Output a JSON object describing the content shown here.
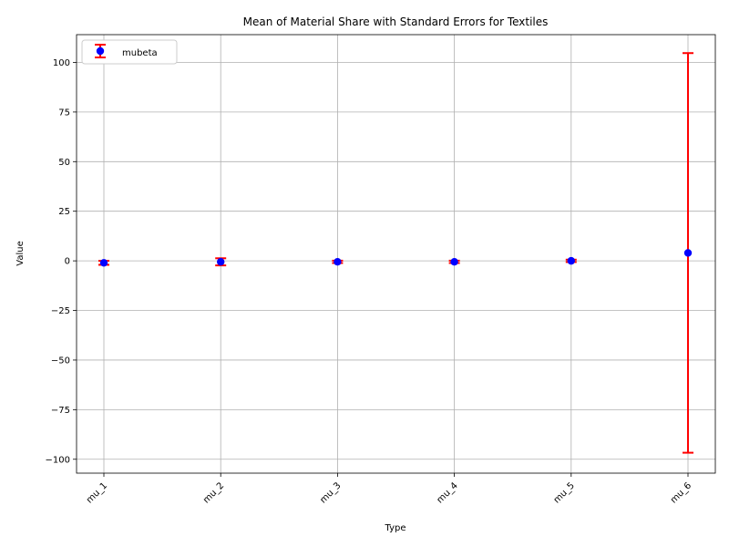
{
  "chart_data": {
    "type": "scatter",
    "title": "Mean of Material Share with Standard Errors for Textiles",
    "xlabel": "Type",
    "ylabel": "Value",
    "categories": [
      "mu_1",
      "mu_2",
      "mu_3",
      "mu_4",
      "mu_5",
      "mu_6"
    ],
    "series": [
      {
        "name": "mubeta",
        "values": [
          -1.0,
          -0.5,
          -0.5,
          -0.5,
          0.0,
          4.0
        ],
        "errors": [
          1.0,
          1.8,
          0.6,
          0.6,
          0.6,
          100.7
        ],
        "marker_color": "#0000ff",
        "error_color": "#ff0000"
      }
    ],
    "ylim": [
      -107,
      114
    ],
    "yticks": [
      -100,
      -75,
      -50,
      -25,
      0,
      25,
      50,
      75,
      100
    ],
    "ytick_labels": [
      "−100",
      "−75",
      "−50",
      "−25",
      "0",
      "25",
      "50",
      "75",
      "100"
    ],
    "grid": true,
    "legend_position": "upper left"
  }
}
